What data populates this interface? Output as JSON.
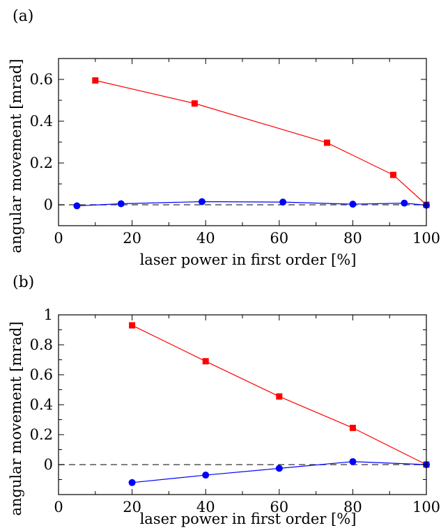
{
  "chart_data": [
    {
      "type": "line",
      "panel_label": "(a)",
      "xlabel": "laser power in first order [%]",
      "ylabel": "angular movement [mrad]",
      "xlim": [
        0,
        100
      ],
      "ylim": [
        -0.1,
        0.7
      ],
      "xticks": [
        0,
        20,
        40,
        60,
        80,
        100
      ],
      "xtick_labels": [
        "0",
        "20",
        "40",
        "60",
        "80",
        "100"
      ],
      "yticks": [
        0,
        0.2,
        0.4,
        0.6
      ],
      "ytick_labels": [
        "0",
        "0.2",
        "0.4",
        "0.6"
      ],
      "grid": false,
      "reference_line": {
        "y": 0,
        "style": "dashed",
        "color": "#555555"
      },
      "series": [
        {
          "color": "#ff0000",
          "marker": "square",
          "x": [
            10,
            37,
            73,
            91,
            100
          ],
          "y": [
            0.595,
            0.485,
            0.297,
            0.143,
            0.0
          ]
        },
        {
          "color": "#0000ff",
          "marker": "circle",
          "x": [
            5,
            17,
            39,
            61,
            80,
            94,
            100
          ],
          "y": [
            -0.005,
            0.005,
            0.015,
            0.013,
            0.003,
            0.008,
            -0.002
          ]
        }
      ]
    },
    {
      "type": "line",
      "panel_label": "(b)",
      "xlabel": "laser power in first order [%]",
      "ylabel": "angular movement [mrad]",
      "xlim": [
        0,
        100
      ],
      "ylim": [
        -0.2,
        1.0
      ],
      "xticks": [
        0,
        20,
        40,
        60,
        80,
        100
      ],
      "xtick_labels": [
        "0",
        "20",
        "40",
        "60",
        "80",
        "100"
      ],
      "yticks": [
        0,
        0.2,
        0.4,
        0.6,
        0.8,
        1.0
      ],
      "ytick_labels": [
        "0",
        "0.2",
        "0.4",
        "0.6",
        "0.8",
        "1"
      ],
      "grid": false,
      "reference_line": {
        "y": 0,
        "style": "dashed",
        "color": "#555555"
      },
      "series": [
        {
          "color": "#ff0000",
          "marker": "square",
          "x": [
            20,
            40,
            60,
            80,
            100
          ],
          "y": [
            0.93,
            0.69,
            0.455,
            0.245,
            0.0
          ]
        },
        {
          "color": "#0000ff",
          "marker": "circle",
          "x": [
            20,
            40,
            60,
            80,
            100
          ],
          "y": [
            -0.12,
            -0.07,
            -0.025,
            0.02,
            0.0
          ]
        }
      ]
    }
  ]
}
